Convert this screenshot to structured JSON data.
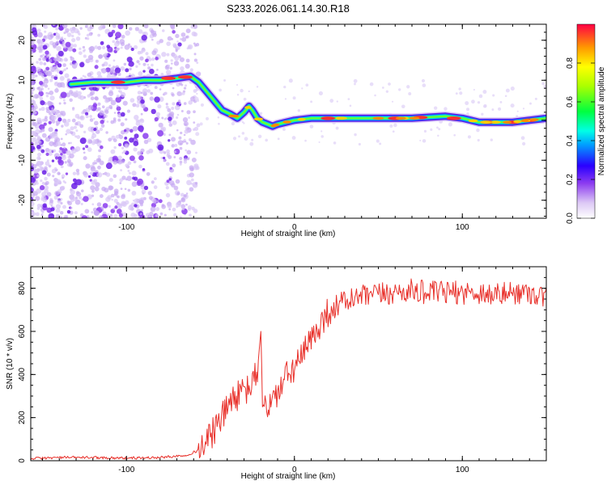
{
  "title": "S233.2026.061.14.30.R18",
  "chart_data": [
    {
      "type": "heatmap",
      "name": "spectrogram",
      "xlabel": "Height of straight line (km)",
      "ylabel": "Frequency (Hz)",
      "xlim": [
        -157,
        150
      ],
      "ylim": [
        -24.5,
        24
      ],
      "xticks": [
        -100,
        0,
        100
      ],
      "xtick_labels": [
        "-100",
        "0",
        "100"
      ],
      "yticks": [
        -20,
        -10,
        0,
        10,
        20
      ],
      "ytick_labels": [
        "-20",
        "-10",
        "0",
        "10",
        "20"
      ],
      "ridge": {
        "x": [
          -133,
          -120,
          -100,
          -90,
          -80,
          -70,
          -62,
          -57,
          -52,
          -47,
          -43,
          -38,
          -34,
          -30,
          -27,
          -25,
          -22,
          -19,
          -16,
          -13,
          -10,
          -5,
          0,
          10,
          30,
          50,
          70,
          90,
          100,
          110,
          130,
          150
        ],
        "frequency": [
          9,
          9.5,
          9.5,
          10,
          10,
          10.5,
          11,
          9.5,
          7,
          4.5,
          2.5,
          1.5,
          0.5,
          2,
          3.5,
          2.5,
          0.5,
          -0.5,
          -1,
          -1.5,
          -1,
          -0.5,
          0,
          0.5,
          0.5,
          0.5,
          0.5,
          1,
          0.5,
          -0.5,
          -0.5,
          0.5
        ]
      },
      "colorbar": {
        "label": "Normalized spectral amplitude",
        "range": [
          0,
          1
        ],
        "ticks": [
          0.0,
          0.2,
          0.4,
          0.6,
          0.8
        ],
        "tick_labels": [
          "0.0",
          "0.2",
          "0.4",
          "0.6",
          "0.8"
        ]
      }
    },
    {
      "type": "line",
      "name": "snr",
      "xlabel": "Height of straight line (km)",
      "ylabel": "SNR (10 * v/v)",
      "xlim": [
        -157,
        150
      ],
      "ylim": [
        0,
        900
      ],
      "xticks": [
        -100,
        0,
        100
      ],
      "xtick_labels": [
        "-100",
        "0",
        "100"
      ],
      "yticks": [
        0,
        200,
        400,
        600,
        800
      ],
      "ytick_labels": [
        "0",
        "200",
        "400",
        "600",
        "800"
      ],
      "series": [
        {
          "name": "SNR",
          "color": "#e8302a",
          "x": [
            -157,
            -140,
            -120,
            -100,
            -80,
            -65,
            -58,
            -52,
            -47,
            -43,
            -40,
            -37,
            -34,
            -31,
            -28,
            -25,
            -22,
            -20,
            -19,
            -17,
            -15,
            -12,
            -8,
            -4,
            0,
            5,
            10,
            15,
            20,
            25,
            30,
            40,
            50,
            60,
            70,
            80,
            90,
            100,
            110,
            120,
            130,
            140,
            150
          ],
          "y": [
            10,
            15,
            15,
            12,
            15,
            25,
            45,
            90,
            150,
            200,
            250,
            290,
            300,
            310,
            330,
            360,
            420,
            600,
            300,
            240,
            260,
            290,
            340,
            400,
            430,
            490,
            560,
            630,
            690,
            720,
            740,
            760,
            770,
            780,
            790,
            780,
            780,
            780,
            780,
            770,
            780,
            780,
            760
          ]
        }
      ]
    }
  ]
}
